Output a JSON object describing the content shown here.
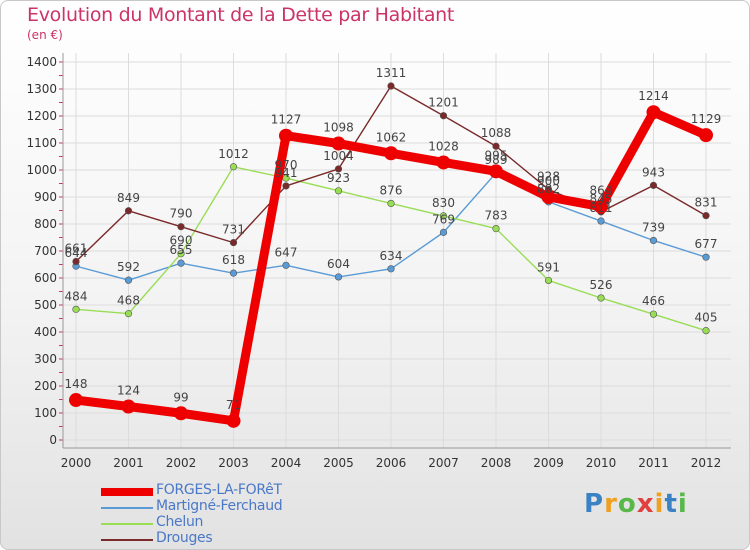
{
  "header": {
    "title": "Evolution du Montant de la Dette par Habitant",
    "unit": "(en €)"
  },
  "logo": {
    "text": "Proxiti"
  },
  "chart_data": {
    "type": "line",
    "title": "Evolution du Montant de la Dette par Habitant",
    "subtitle": "(en €)",
    "xlabel": "",
    "ylabel": "",
    "x": [
      2000,
      2001,
      2002,
      2003,
      2004,
      2005,
      2006,
      2007,
      2008,
      2009,
      2010,
      2011,
      2012
    ],
    "ylim": [
      0,
      1400
    ],
    "yticks": [
      0,
      100,
      200,
      300,
      400,
      500,
      600,
      700,
      800,
      900,
      1000,
      1100,
      1200,
      1300,
      1400
    ],
    "grid": true,
    "legend_position": "bottom-left",
    "series": [
      {
        "name": "FORGES-LA-FORêT",
        "color": "#ee0000",
        "emphasis": true,
        "values": [
          148,
          124,
          99,
          71,
          1127,
          1098,
          1062,
          1028,
          995,
          900,
          864,
          1214,
          1129
        ]
      },
      {
        "name": "Martigné-Ferchaud",
        "color": "#5b9bd5",
        "emphasis": false,
        "values": [
          644,
          592,
          655,
          618,
          647,
          604,
          634,
          769,
          989,
          882,
          811,
          739,
          677
        ]
      },
      {
        "name": "Chelun",
        "color": "#99dd55",
        "emphasis": false,
        "values": [
          484,
          468,
          690,
          1012,
          970,
          923,
          876,
          830,
          783,
          591,
          526,
          466,
          405
        ]
      },
      {
        "name": "Drouges",
        "color": "#7a2a2a",
        "emphasis": false,
        "values": [
          661,
          849,
          790,
          731,
          941,
          1004,
          1311,
          1201,
          1088,
          928,
          845,
          943,
          831
        ]
      }
    ]
  }
}
